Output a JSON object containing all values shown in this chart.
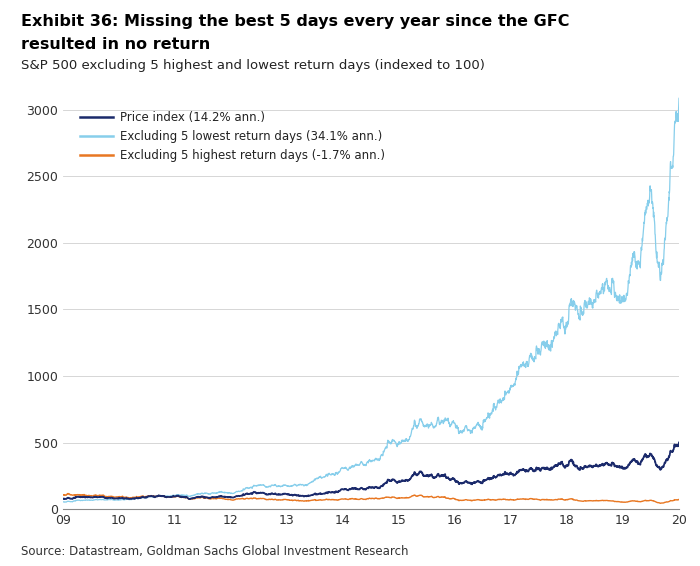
{
  "title_line1": "Exhibit 36: Missing the best 5 days every year since the GFC",
  "title_line2": "resulted in no return",
  "subtitle": "S&P 500 excluding 5 highest and lowest return days (indexed to 100)",
  "source": "Source: Datastream, Goldman Sachs Global Investment Research",
  "legend": [
    {
      "label": "Price index (14.2% ann.)",
      "color": "#1B2A6B"
    },
    {
      "label": "Excluding 5 lowest return days (34.1% ann.)",
      "color": "#87CEEB"
    },
    {
      "label": "Excluding 5 highest return days (-1.7% ann.)",
      "color": "#E87722"
    }
  ],
  "x_ticks": [
    "09",
    "10",
    "11",
    "12",
    "13",
    "14",
    "15",
    "16",
    "17",
    "18",
    "19",
    "20"
  ],
  "y_ticks": [
    0,
    500,
    1000,
    1500,
    2000,
    2500,
    3000
  ],
  "ylim": [
    0,
    3100
  ],
  "background_color": "#ffffff"
}
